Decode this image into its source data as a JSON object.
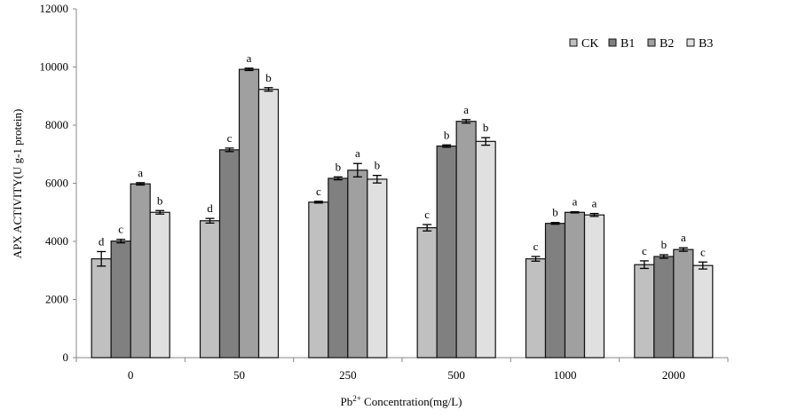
{
  "chart_data": {
    "type": "bar",
    "title": "",
    "xlabel_main": "Pb",
    "xlabel_sup": "2+",
    "xlabel_rest": " Concentration(mg/L)",
    "ylabel": "APX ACTIVITY(U g-1 protein)",
    "ylim": [
      0,
      12000
    ],
    "yticks": [
      "0",
      "2000",
      "4000",
      "6000",
      "8000",
      "10000",
      "12000"
    ],
    "categories": [
      "0",
      "50",
      "250",
      "500",
      "1000",
      "2000"
    ],
    "legend_position": "top-right",
    "series": [
      {
        "name": "CK",
        "color": "#c0c0c0",
        "values": [
          3400,
          4710,
          5350,
          4470,
          3400,
          3200
        ],
        "errors": [
          250,
          80,
          30,
          110,
          80,
          130
        ],
        "letters": [
          "d",
          "d",
          "c",
          "c",
          "c",
          "c"
        ]
      },
      {
        "name": "B1",
        "color": "#808080",
        "values": [
          4010,
          7150,
          6170,
          7280,
          4620,
          3480
        ],
        "errors": [
          60,
          60,
          50,
          40,
          30,
          60
        ],
        "letters": [
          "c",
          "c",
          "b",
          "b",
          "b",
          "b"
        ]
      },
      {
        "name": "B2",
        "color": "#a0a0a0",
        "values": [
          5980,
          9920,
          6450,
          8130,
          5000,
          3720
        ],
        "errors": [
          40,
          40,
          230,
          60,
          20,
          60
        ],
        "letters": [
          "a",
          "a",
          "a",
          "a",
          "a",
          "a"
        ]
      },
      {
        "name": "B3",
        "color": "#e0e0e0",
        "values": [
          5000,
          9230,
          6140,
          7440,
          4910,
          3170
        ],
        "errors": [
          60,
          60,
          130,
          130,
          50,
          120
        ],
        "letters": [
          "b",
          "b",
          "b",
          "b",
          "a",
          "c"
        ]
      }
    ]
  }
}
